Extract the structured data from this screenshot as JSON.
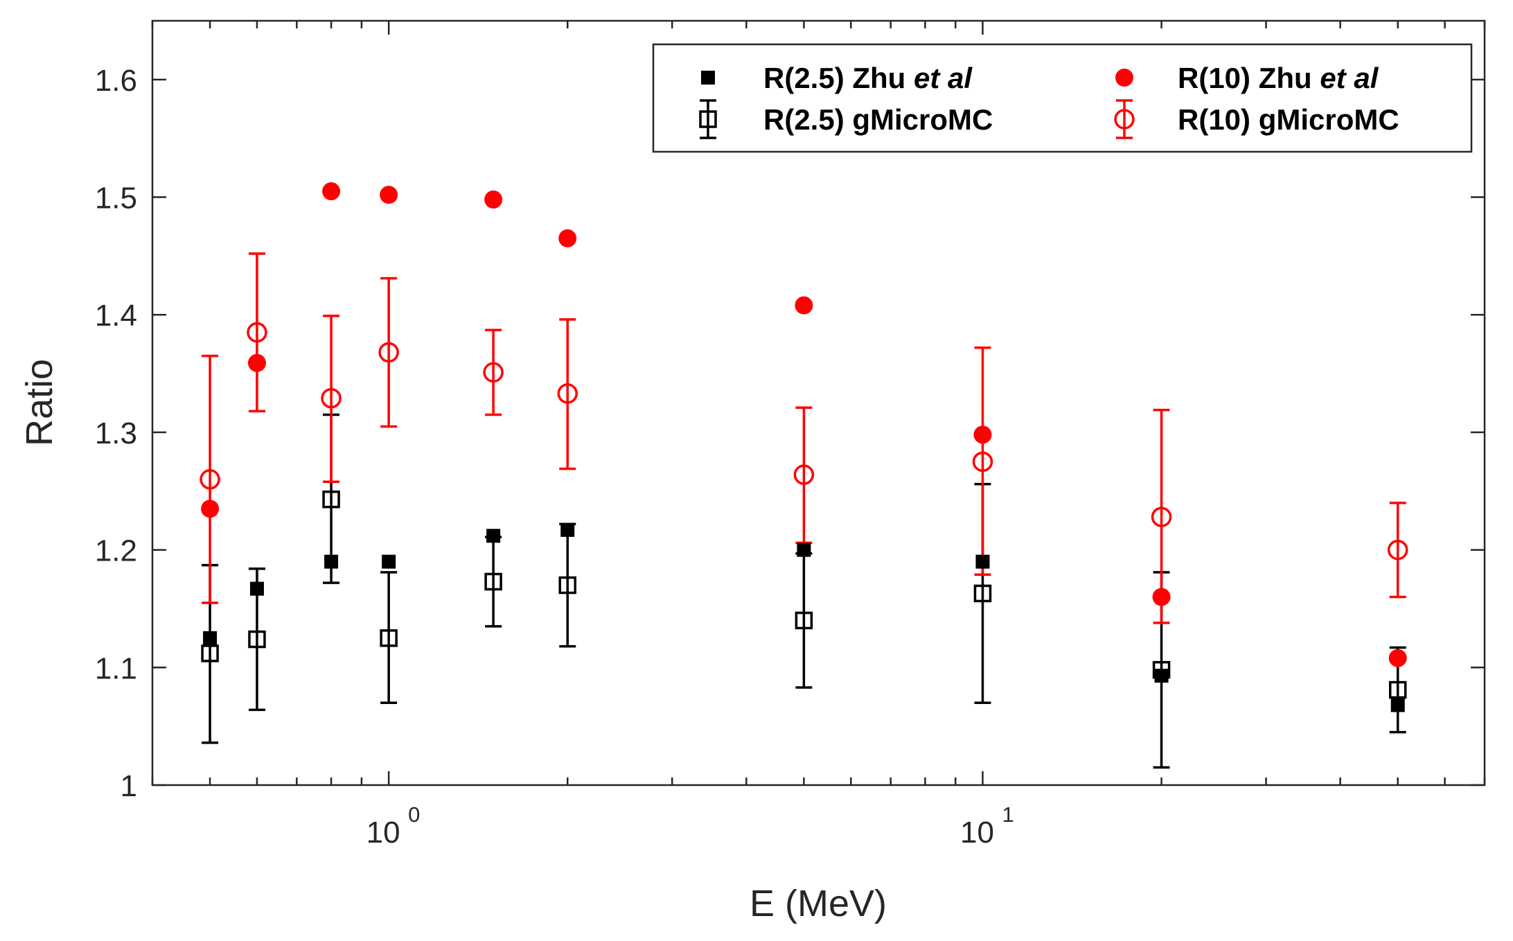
{
  "chart_data": {
    "type": "scatter",
    "title": "",
    "xlabel": "E (MeV)",
    "ylabel": "Ratio",
    "xscale": "log",
    "xlim": [
      0.4,
      70
    ],
    "ylim": [
      1.0,
      1.65
    ],
    "yticks": [
      1,
      1.1,
      1.2,
      1.3,
      1.4,
      1.5,
      1.6
    ],
    "ytick_labels": [
      "1",
      "1.1",
      "1.2",
      "1.3",
      "1.4",
      "1.5",
      "1.6"
    ],
    "xticks_major": [
      1,
      10
    ],
    "xtick_labels": [
      {
        "base": "10",
        "exp": "0"
      },
      {
        "base": "10",
        "exp": "1"
      }
    ],
    "legend_position": "top-right",
    "colors": {
      "black": "#000000",
      "red": "#ff0000",
      "axis": "#262626"
    },
    "series": [
      {
        "name": "R(2.5) Zhu et al",
        "label_parts": [
          "R(2.5) Zhu ",
          "et al"
        ],
        "marker": "filled-square",
        "color": "#000000",
        "x": [
          0.5,
          0.6,
          0.8,
          1.0,
          1.5,
          2.0,
          5.0,
          10.0,
          20.0,
          50.0
        ],
        "y": [
          1.125,
          1.167,
          1.19,
          1.19,
          1.212,
          1.217,
          1.2,
          1.19,
          1.093,
          1.068
        ]
      },
      {
        "name": "R(2.5) gMicroMC",
        "label_parts": [
          "R(2.5) gMicroMC"
        ],
        "marker": "open-square-errorbar",
        "color": "#000000",
        "x": [
          0.5,
          0.6,
          0.8,
          1.0,
          1.5,
          2.0,
          5.0,
          10.0,
          20.0,
          50.0
        ],
        "y": [
          1.112,
          1.124,
          1.243,
          1.125,
          1.173,
          1.17,
          1.14,
          1.163,
          1.098,
          1.081
        ],
        "yerr_low": [
          1.036,
          1.064,
          1.172,
          1.07,
          1.135,
          1.118,
          1.083,
          1.07,
          1.015,
          1.045
        ],
        "yerr_high": [
          1.187,
          1.184,
          1.315,
          1.181,
          1.211,
          1.222,
          1.197,
          1.256,
          1.181,
          1.117
        ]
      },
      {
        "name": "R(10) Zhu et al",
        "label_parts": [
          "R(10) Zhu ",
          "et al"
        ],
        "marker": "filled-circle",
        "color": "#ff0000",
        "x": [
          0.5,
          0.6,
          0.8,
          1.0,
          1.5,
          2.0,
          5.0,
          10.0,
          20.0,
          50.0
        ],
        "y": [
          1.235,
          1.359,
          1.505,
          1.502,
          1.498,
          1.465,
          1.408,
          1.298,
          1.16,
          1.108
        ]
      },
      {
        "name": "R(10) gMicroMC",
        "label_parts": [
          "R(10) gMicroMC"
        ],
        "marker": "open-circle-errorbar",
        "color": "#ff0000",
        "x": [
          0.5,
          0.6,
          0.8,
          1.0,
          1.5,
          2.0,
          5.0,
          10.0,
          20.0,
          50.0
        ],
        "y": [
          1.26,
          1.385,
          1.329,
          1.368,
          1.351,
          1.333,
          1.264,
          1.275,
          1.228,
          1.2
        ],
        "yerr_low": [
          1.155,
          1.318,
          1.258,
          1.305,
          1.315,
          1.269,
          1.206,
          1.179,
          1.138,
          1.16
        ],
        "yerr_high": [
          1.365,
          1.452,
          1.399,
          1.431,
          1.387,
          1.396,
          1.321,
          1.372,
          1.319,
          1.24
        ]
      }
    ]
  }
}
